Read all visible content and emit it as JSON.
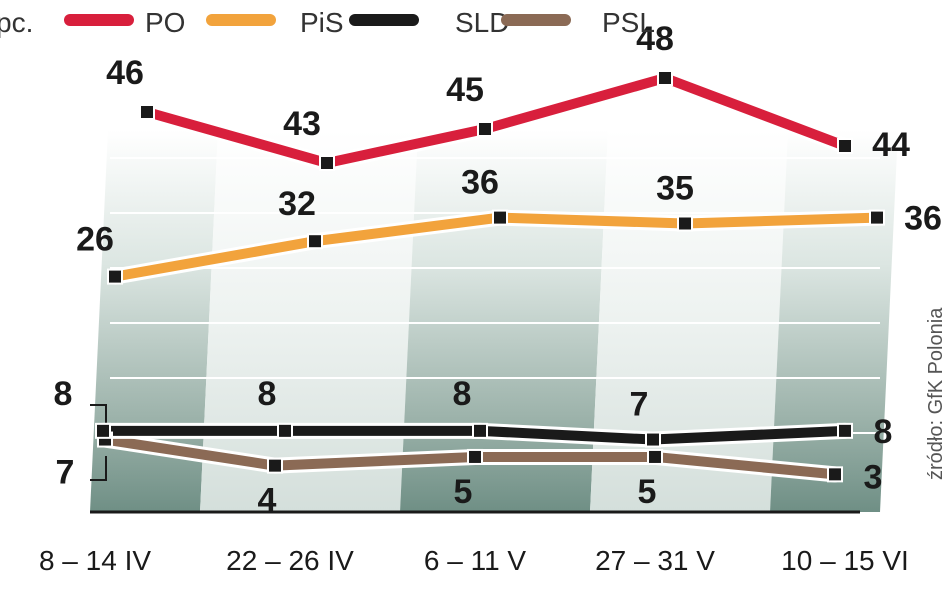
{
  "chart_data": {
    "type": "line",
    "unit_label": "pc.",
    "categories": [
      "8 – 14 IV",
      "22 – 26 IV",
      "6 – 11 V",
      "27 – 31 V",
      "10 – 15 VI"
    ],
    "ylim": [
      0,
      50
    ],
    "grid": true,
    "legend_position": "top",
    "series": [
      {
        "name": "PO",
        "color": "#d81f3c",
        "values": [
          46,
          43,
          45,
          48,
          44
        ]
      },
      {
        "name": "PiS",
        "color": "#f2a33c",
        "values": [
          26,
          32,
          36,
          35,
          36
        ]
      },
      {
        "name": "SLD",
        "color": "#1a1a1a",
        "values": [
          8,
          8,
          8,
          7,
          8
        ]
      },
      {
        "name": "PSL",
        "color": "#8b6a55",
        "values": [
          7,
          4,
          5,
          5,
          3
        ]
      }
    ],
    "source": "źródło: GfK Polonia"
  }
}
